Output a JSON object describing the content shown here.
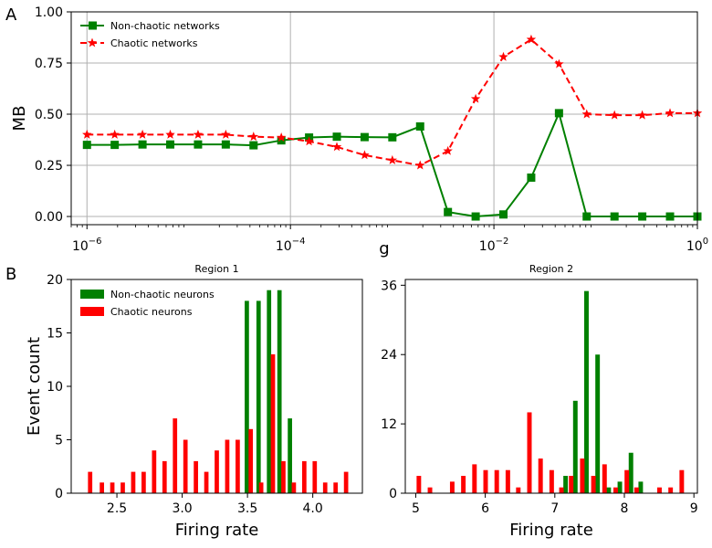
{
  "panels": {
    "a_letter": "A",
    "b_letter": "B"
  },
  "colors": {
    "green": "#008000",
    "red": "#ff0000",
    "grid": "#b0b0b0"
  },
  "chart_data": [
    {
      "type": "line",
      "panel": "A",
      "xlabel": "g",
      "ylabel": "MB",
      "xscale": "log",
      "xlim": [
        7e-07,
        1
      ],
      "ylim": [
        -0.04,
        1.0
      ],
      "xticks": [
        1e-06,
        0.0001,
        0.01,
        1
      ],
      "xtick_labels": [
        {
          "base": "10",
          "exp": "−6"
        },
        {
          "base": "10",
          "exp": "−4"
        },
        {
          "base": "10",
          "exp": "−2"
        },
        {
          "base": "10",
          "exp": "0"
        }
      ],
      "yticks": [
        0.0,
        0.25,
        0.5,
        0.75,
        1.0
      ],
      "ytick_labels": [
        "0.00",
        "0.25",
        "0.50",
        "0.75",
        "1.00"
      ],
      "grid": true,
      "legend_position": "top-left",
      "x": [
        1e-06,
        1.874e-06,
        3.514e-06,
        6.587e-06,
        1.235e-05,
        2.315e-05,
        4.34e-05,
        8.133e-05,
        0.0001525,
        0.0002858,
        0.0005358,
        0.001004,
        0.001883,
        0.00353,
        0.006617,
        0.0124,
        0.02325,
        0.0436,
        0.0817,
        0.1532,
        0.2871,
        0.5383,
        1.0
      ],
      "series": [
        {
          "name": "Non-chaotic networks",
          "color": "#008000",
          "linestyle": "solid",
          "marker": "square",
          "values": [
            0.35,
            0.35,
            0.352,
            0.352,
            0.352,
            0.352,
            0.348,
            0.372,
            0.386,
            0.39,
            0.388,
            0.387,
            0.44,
            0.022,
            0.0,
            0.01,
            0.19,
            0.505,
            0.0,
            0.0,
            0.0,
            0.0,
            0.0
          ]
        },
        {
          "name": "Chaotic networks",
          "color": "#ff0000",
          "linestyle": "dashed",
          "marker": "star",
          "values": [
            0.4,
            0.4,
            0.4,
            0.4,
            0.4,
            0.4,
            0.39,
            0.386,
            0.367,
            0.34,
            0.3,
            0.275,
            0.25,
            0.32,
            0.575,
            0.78,
            0.865,
            0.745,
            0.5,
            0.495,
            0.495,
            0.505,
            0.505
          ]
        }
      ]
    },
    {
      "type": "bar",
      "panel": "B",
      "title": "Region 1",
      "xlabel": "Firing rate",
      "ylabel": "Event count",
      "xlim": [
        2.15,
        4.38
      ],
      "ylim": [
        0,
        20
      ],
      "xticks": [
        2.5,
        3.0,
        3.5,
        4.0
      ],
      "xtick_labels": [
        "2.5",
        "3.0",
        "3.5",
        "4.0"
      ],
      "yticks": [
        0,
        5,
        10,
        15,
        20
      ],
      "ytick_labels": [
        "0",
        "5",
        "10",
        "15",
        "20"
      ],
      "bar_width": 0.033,
      "legend_position": "top-left",
      "series": [
        {
          "name": "Non-chaotic neurons",
          "color": "#008000",
          "x": [
            3.495,
            3.585,
            3.665,
            3.745,
            3.825
          ],
          "values": [
            18,
            18,
            19,
            19,
            7
          ]
        },
        {
          "name": "Chaotic neurons",
          "color": "#ff0000",
          "x": [
            2.295,
            2.385,
            2.465,
            2.545,
            2.625,
            2.705,
            2.785,
            2.865,
            2.945,
            3.025,
            3.105,
            3.185,
            3.265,
            3.345,
            3.425,
            3.525,
            3.605,
            3.695,
            3.775,
            3.855,
            3.935,
            4.015,
            4.095,
            4.175,
            4.255
          ],
          "values": [
            2,
            1,
            1,
            1,
            2,
            2,
            4,
            3,
            7,
            5,
            3,
            2,
            4,
            5,
            5,
            6,
            1,
            13,
            3,
            1,
            3,
            3,
            1,
            1,
            2
          ]
        }
      ]
    },
    {
      "type": "bar",
      "panel": "B",
      "title": "Region 2",
      "xlabel": "Firing rate",
      "ylabel": "",
      "xlim": [
        4.85,
        9.05
      ],
      "ylim": [
        0,
        37
      ],
      "xticks": [
        5,
        6,
        7,
        8,
        9
      ],
      "xtick_labels": [
        "5",
        "6",
        "7",
        "8",
        "9"
      ],
      "yticks": [
        0,
        12,
        24,
        36
      ],
      "ytick_labels": [
        "0",
        "12",
        "24",
        "36"
      ],
      "bar_width": 0.065,
      "series": [
        {
          "name": "Non-chaotic neurons",
          "color": "#008000",
          "x": [
            7.155,
            7.295,
            7.455,
            7.615,
            7.775,
            7.935,
            8.095,
            8.235
          ],
          "values": [
            3,
            16,
            35,
            24,
            1,
            2,
            7,
            2
          ]
        },
        {
          "name": "Chaotic neurons",
          "color": "#ff0000",
          "x": [
            5.045,
            5.205,
            5.525,
            5.685,
            5.845,
            6.005,
            6.165,
            6.325,
            6.475,
            6.635,
            6.795,
            6.955,
            7.095,
            7.235,
            7.395,
            7.555,
            7.715,
            7.875,
            8.035,
            8.175,
            8.505,
            8.665,
            8.825
          ],
          "values": [
            3,
            1,
            2,
            3,
            5,
            4,
            4,
            4,
            1,
            14,
            6,
            4,
            1,
            3,
            6,
            3,
            5,
            1,
            4,
            1,
            1,
            1,
            4
          ]
        }
      ]
    }
  ]
}
